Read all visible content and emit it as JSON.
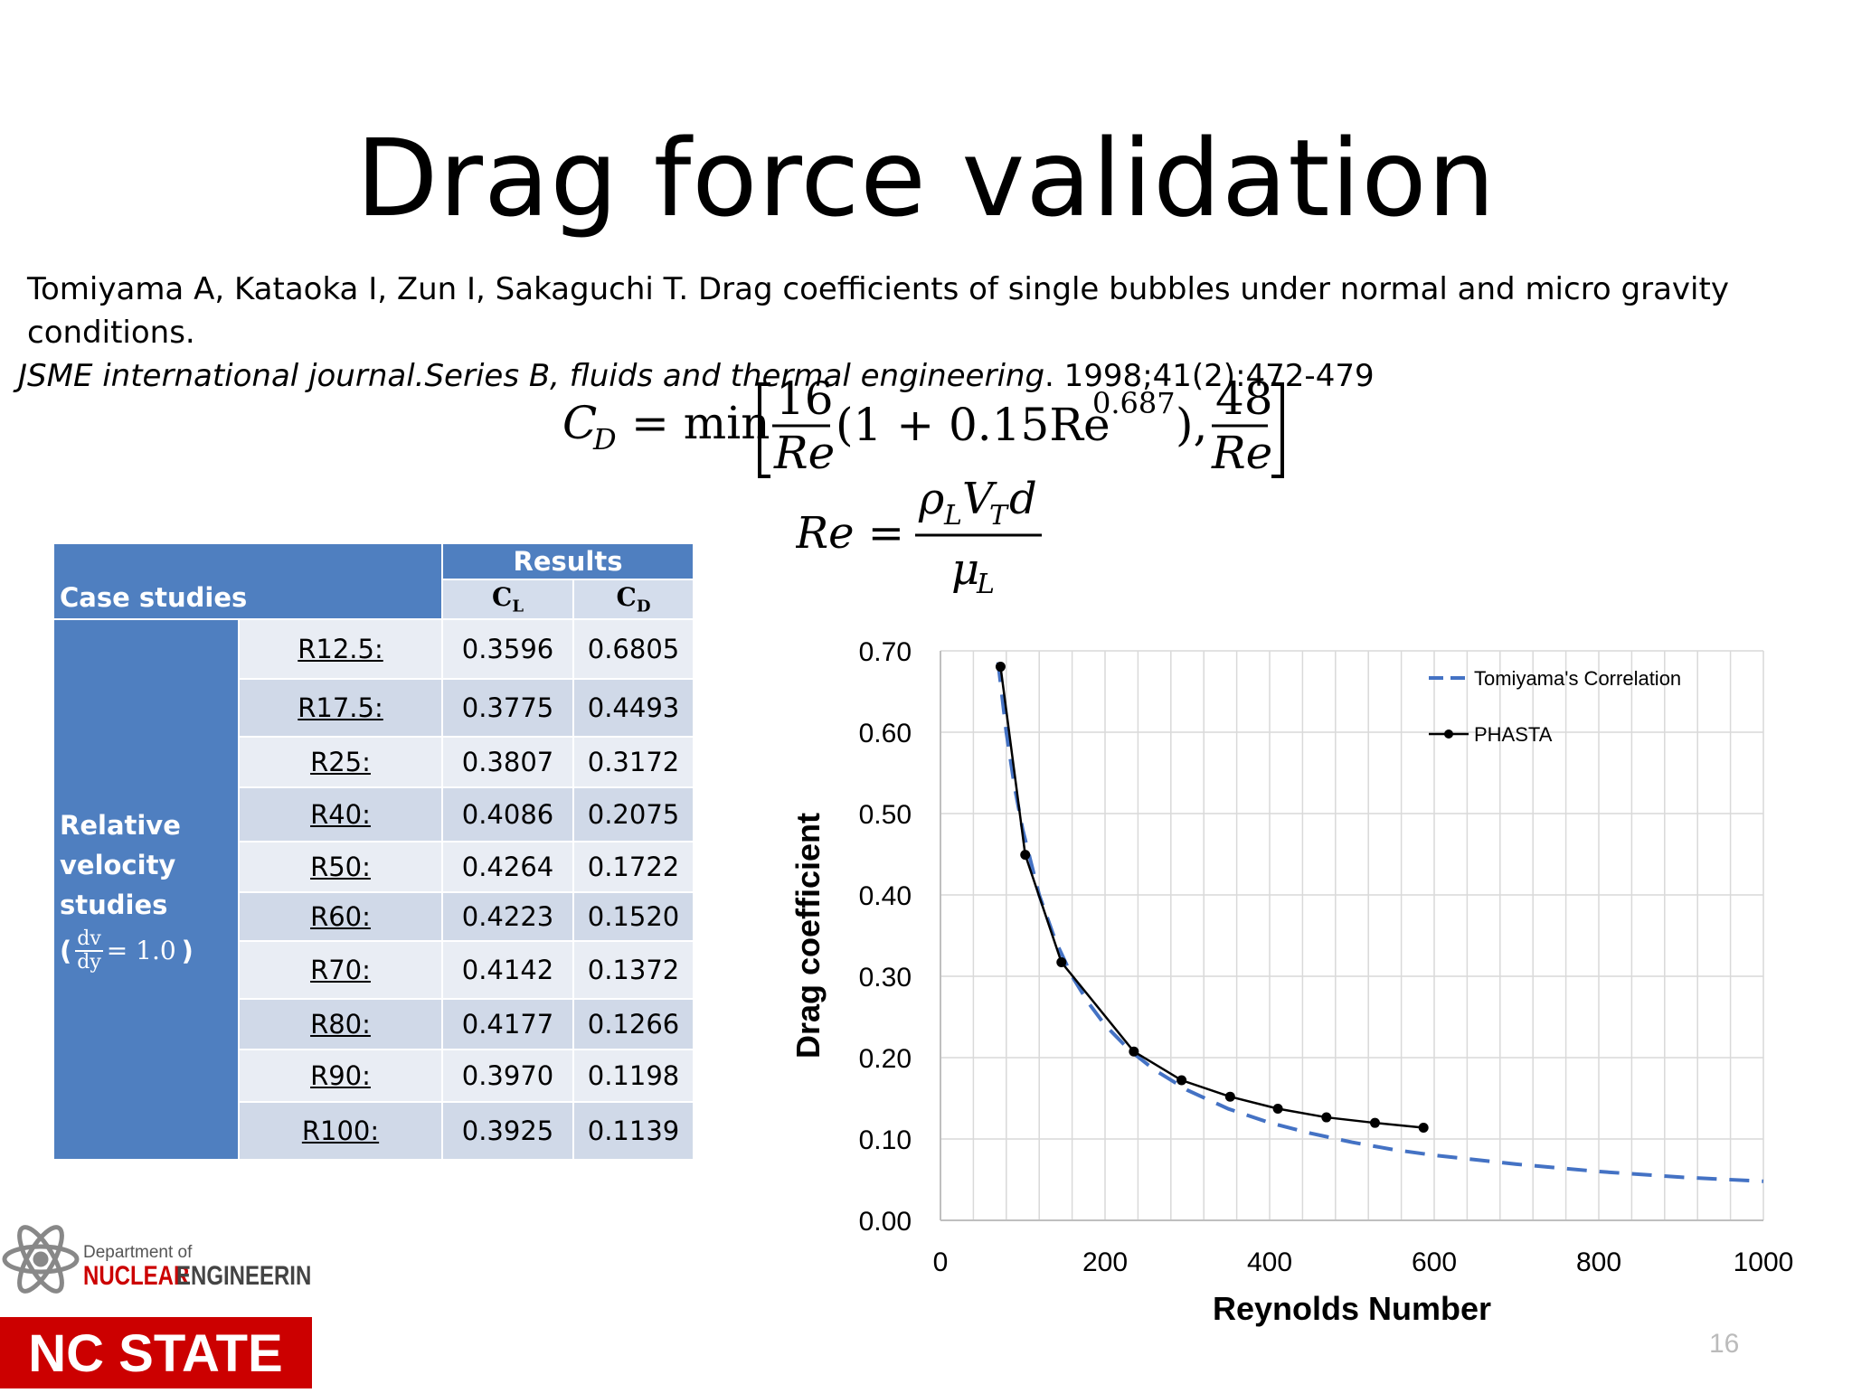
{
  "slide": {
    "title": "Drag force validation",
    "citation_line1": "Tomiyama A, Kataoka I, Zun I, Sakaguchi T. Drag coefficients of single bubbles under normal and micro gravity conditions.",
    "citation_journal": "JSME international journal.Series B, fluids and thermal engineering",
    "citation_rest": ". 1998;41(2):472-479",
    "page_number": "16"
  },
  "equations": {
    "cd_lhs": "C",
    "cd_sub": "D",
    "min": "= min",
    "num16": "16",
    "re": "Re",
    "middle": "(1 + 0.15Re",
    "exp": "0.687",
    "close": "),",
    "num48": "48",
    "re_lhs": "Re =",
    "rho": "ρ",
    "sub_L": "L",
    "V": "V",
    "sub_T": "T",
    "d": "d",
    "mu": "μ"
  },
  "table": {
    "header_cases": "Case studies",
    "header_results": "Results",
    "col_cl": "C",
    "col_cl_sub": "L",
    "col_cd": "C",
    "col_cd_sub": "D",
    "side_label_1": "Relative",
    "side_label_2": "velocity",
    "side_label_3": "studies",
    "side_open": "(",
    "side_frac_num": "dv",
    "side_frac_den": "dy",
    "side_eq": "= 1.0",
    "side_close": ")",
    "rows": [
      {
        "case": "R12.5:",
        "cl": "0.3596",
        "cd": "0.6805"
      },
      {
        "case": "R17.5:",
        "cl": "0.3775",
        "cd": "0.4493"
      },
      {
        "case": "R25:",
        "cl": "0.3807",
        "cd": "0.3172"
      },
      {
        "case": "R40:",
        "cl": "0.4086",
        "cd": "0.2075"
      },
      {
        "case": "R50:",
        "cl": "0.4264",
        "cd": "0.1722"
      },
      {
        "case": "R60:",
        "cl": "0.4223",
        "cd": "0.1520"
      },
      {
        "case": "R70:",
        "cl": "0.4142",
        "cd": "0.1372"
      },
      {
        "case": "R80:",
        "cl": "0.4177",
        "cd": "0.1266"
      },
      {
        "case": "R90:",
        "cl": "0.3970",
        "cd": "0.1198"
      },
      {
        "case": "R100:",
        "cl": "0.3925",
        "cd": "0.1139"
      }
    ]
  },
  "chart_data": {
    "type": "line",
    "xlabel": "Reynolds Number",
    "ylabel": "Drag coefficient",
    "xlim": [
      0,
      1000
    ],
    "ylim": [
      0,
      0.7
    ],
    "xticks": [
      "0",
      "200",
      "400",
      "600",
      "800",
      "1000"
    ],
    "yticks": [
      "0.00",
      "0.10",
      "0.20",
      "0.30",
      "0.40",
      "0.50",
      "0.60",
      "0.70"
    ],
    "grid": true,
    "legend_position": "top-right",
    "series": [
      {
        "name": "Tomiyama's Correlation",
        "style": "dashed",
        "color": "#4472c4",
        "x": [
          70,
          80,
          90,
          100,
          120,
          140,
          160,
          180,
          200,
          230,
          260,
          300,
          350,
          400,
          450,
          500,
          550,
          600,
          700,
          800,
          900,
          1000
        ],
        "y": [
          0.686,
          0.6,
          0.533,
          0.48,
          0.4,
          0.343,
          0.3,
          0.267,
          0.24,
          0.209,
          0.185,
          0.16,
          0.137,
          0.12,
          0.107,
          0.096,
          0.087,
          0.08,
          0.069,
          0.06,
          0.053,
          0.048
        ]
      },
      {
        "name": "PHASTA",
        "style": "solid-marker",
        "color": "#000000",
        "x": [
          73,
          103,
          147,
          235,
          293,
          352,
          410,
          469,
          528,
          587
        ],
        "y": [
          0.6805,
          0.4493,
          0.3172,
          0.2075,
          0.1722,
          0.152,
          0.1372,
          0.1266,
          0.1198,
          0.1139
        ]
      }
    ]
  },
  "logo": {
    "dept_line1": "Department of",
    "dept_line2a": "NUCLEAR",
    "dept_line2b": "ENGINEERING",
    "brand": "NC STATE",
    "brand_color": "#cc0000"
  }
}
